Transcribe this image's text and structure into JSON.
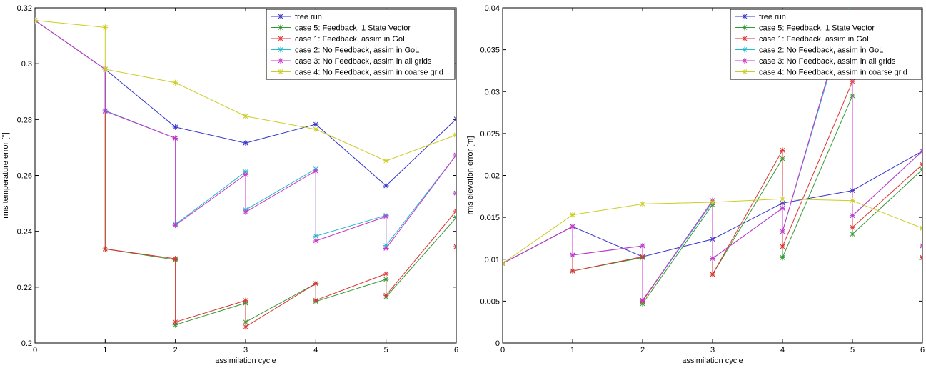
{
  "chart_data": [
    {
      "type": "line",
      "xlabel": "assimilation cycle",
      "ylabel": "rms temperature error [°]",
      "xlim": [
        0,
        6
      ],
      "ylim": [
        0.2,
        0.32
      ],
      "xticks": [
        0,
        1,
        2,
        3,
        4,
        5,
        6
      ],
      "yticks": [
        0.2,
        0.22,
        0.24,
        0.26,
        0.28,
        0.3,
        0.32
      ],
      "ytick_labels": [
        "0.2",
        "0.22",
        "0.24",
        "0.26",
        "0.28",
        "0.3",
        "0.32"
      ],
      "grid": false,
      "legend_position": "top-right",
      "series": [
        {
          "name": "free run",
          "color": "#3333cc",
          "x": [
            0,
            1,
            2,
            3,
            4,
            5,
            6
          ],
          "y": [
            0.3155,
            0.298,
            0.2773,
            0.2716,
            0.2783,
            0.2563,
            0.2802
          ]
        },
        {
          "name": "case 5: Feedback, 1 State Vector",
          "color": "#339933",
          "x": [
            0,
            1,
            1,
            2,
            2,
            3,
            3,
            4,
            4,
            5,
            5,
            6,
            6
          ],
          "y": [
            0.3155,
            0.298,
            0.2337,
            0.2298,
            0.2065,
            0.2143,
            0.2075,
            0.2213,
            0.2149,
            0.2228,
            0.2165,
            0.2449,
            0.2345
          ]
        },
        {
          "name": "case 1: Feedback, assim in GoL",
          "color": "#dd3333",
          "x": [
            0,
            1,
            1,
            2,
            2,
            3,
            3,
            4,
            4,
            5,
            5,
            6,
            6
          ],
          "y": [
            0.3155,
            0.298,
            0.2337,
            0.2302,
            0.2075,
            0.2152,
            0.2058,
            0.2213,
            0.2153,
            0.2248,
            0.2171,
            0.2473,
            0.2345
          ]
        },
        {
          "name": "case 2: No Feedback, assim in GoL",
          "color": "#22bbcc",
          "x": [
            0,
            1,
            1,
            2,
            2,
            3,
            3,
            4,
            4,
            5,
            5,
            6,
            6
          ],
          "y": [
            0.3155,
            0.298,
            0.2832,
            0.2733,
            0.2425,
            0.2613,
            0.2477,
            0.2623,
            0.2383,
            0.2457,
            0.2349,
            0.2673,
            0.2537
          ]
        },
        {
          "name": "case 3: No Feedback, assim in all grids",
          "color": "#cc33cc",
          "x": [
            0,
            1,
            1,
            2,
            2,
            3,
            3,
            4,
            4,
            5,
            5,
            6,
            6
          ],
          "y": [
            0.3155,
            0.298,
            0.283,
            0.2733,
            0.2422,
            0.2603,
            0.2469,
            0.2616,
            0.2366,
            0.2453,
            0.2339,
            0.2673,
            0.2537
          ]
        },
        {
          "name": "case 4: No Feedback, assim in coarse grid",
          "color": "#cccc22",
          "x": [
            0,
            1,
            1,
            2,
            3,
            4,
            5,
            6
          ],
          "y": [
            0.3155,
            0.313,
            0.298,
            0.2932,
            0.2812,
            0.2765,
            0.2652,
            0.2745
          ]
        }
      ]
    },
    {
      "type": "line",
      "xlabel": "assimilation cycle",
      "ylabel": "rms elevation error [m]",
      "xlim": [
        0,
        6
      ],
      "ylim": [
        0,
        0.04
      ],
      "xticks": [
        0,
        1,
        2,
        3,
        4,
        5,
        6
      ],
      "yticks": [
        0,
        0.005,
        0.01,
        0.015,
        0.02,
        0.025,
        0.03,
        0.035,
        0.04
      ],
      "ytick_labels": [
        "0",
        "0.005",
        "0.01",
        "0.015",
        "0.02",
        "0.025",
        "0.03",
        "0.035",
        "0.04"
      ],
      "grid": false,
      "legend_position": "top-right",
      "series": [
        {
          "name": "free run",
          "color": "#3333cc",
          "x": [
            0,
            1,
            2,
            3,
            4,
            5,
            6
          ],
          "y": [
            0.0095,
            0.0139,
            0.0103,
            0.0124,
            0.0167,
            0.0182,
            0.0229
          ]
        },
        {
          "name": "case 5: Feedback, 1 State Vector",
          "color": "#339933",
          "x": [
            0,
            1,
            1,
            2,
            2,
            3,
            3,
            4,
            4,
            5,
            5,
            6,
            6
          ],
          "y": [
            0.0095,
            0.0139,
            0.0086,
            0.0102,
            0.0047,
            0.0165,
            0.0082,
            0.022,
            0.0102,
            0.0295,
            0.013,
            0.0207,
            0.0102
          ]
        },
        {
          "name": "case 1: Feedback, assim in GoL",
          "color": "#dd3333",
          "x": [
            0,
            1,
            1,
            2,
            2,
            3,
            3,
            4,
            4,
            5,
            5,
            6,
            6
          ],
          "y": [
            0.0095,
            0.0139,
            0.0086,
            0.0103,
            0.005,
            0.017,
            0.0082,
            0.023,
            0.0115,
            0.0312,
            0.0138,
            0.0213,
            0.0102
          ]
        },
        {
          "name": "case 2: No Feedback, assim in GoL",
          "color": "#22bbcc",
          "x": [
            0,
            1,
            1,
            2,
            2,
            3,
            3,
            4,
            4,
            5,
            5,
            6,
            6
          ],
          "y": [
            0.0095,
            0.0139,
            0.0105,
            0.0116,
            0.0051,
            0.0168,
            0.0101,
            0.0161,
            0.0133,
            0.0415,
            0.0152,
            0.0229,
            0.0116
          ]
        },
        {
          "name": "case 3: No Feedback, assim in all grids",
          "color": "#cc33cc",
          "x": [
            0,
            1,
            1,
            2,
            2,
            3,
            3,
            4,
            4,
            5,
            5,
            6,
            6
          ],
          "y": [
            0.0095,
            0.0139,
            0.0105,
            0.0116,
            0.0051,
            0.017,
            0.0101,
            0.0161,
            0.0133,
            0.042,
            0.0152,
            0.0229,
            0.0116
          ]
        },
        {
          "name": "case 4: No Feedback, assim in coarse grid",
          "color": "#cccc22",
          "x": [
            0,
            1,
            2,
            3,
            4,
            5,
            6
          ],
          "y": [
            0.0095,
            0.0153,
            0.0166,
            0.0168,
            0.0172,
            0.017,
            0.0137
          ]
        }
      ]
    }
  ]
}
